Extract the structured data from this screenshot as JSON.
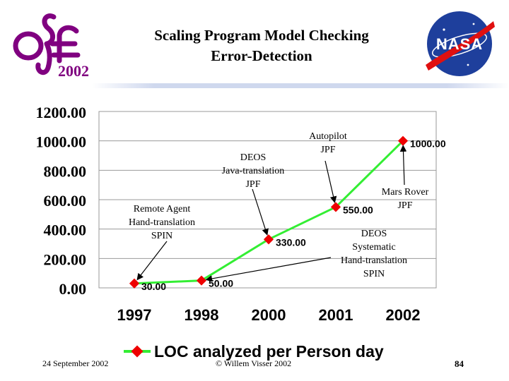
{
  "slide": {
    "title_line1": "Scaling Program Model Checking",
    "title_line2": "Error-Detection",
    "logo_year": "2002",
    "nasa_logo_text": "NASA",
    "footer_date": "24 September 2002",
    "footer_copyright": "© Willem Visser 2002",
    "footer_page": "84"
  },
  "colors": {
    "line": "#33ee33",
    "marker": "#ee0000",
    "grid": "#999999",
    "logo": "#800080",
    "nasa_blue": "#1e3f9c",
    "nasa_red": "#e01010"
  },
  "chart_data": {
    "type": "line",
    "categories": [
      "1997",
      "1998",
      "2000",
      "2001",
      "2002"
    ],
    "series": [
      {
        "name": "LOC analyzed per Person day",
        "values": [
          30.0,
          50.0,
          330.0,
          550.0,
          1000.0
        ]
      }
    ],
    "data_labels": [
      "30.00",
      "50.00",
      "330.00",
      "550.00",
      "1000.00"
    ],
    "y_ticks": [
      "0.00",
      "200.00",
      "400.00",
      "600.00",
      "800.00",
      "1000.00",
      "1200.00"
    ],
    "ylim": [
      0,
      1200
    ],
    "grid": "horizontal",
    "legend_position": "bottom",
    "annotations": [
      {
        "text_lines": [
          "Remote Agent",
          "Hand-translation",
          "SPIN"
        ],
        "points_to": "1997"
      },
      {
        "text_lines": [
          "DEOS",
          "Java-translation",
          "JPF"
        ],
        "points_to": "2000"
      },
      {
        "text_lines": [
          "Autopilot",
          "JPF"
        ],
        "points_to": "2001"
      },
      {
        "text_lines": [
          "Mars Rover",
          "JPF"
        ],
        "points_to": "2002"
      },
      {
        "text_lines": [
          "DEOS",
          "Systematic",
          "Hand-translation",
          "SPIN"
        ],
        "points_to": "1998"
      }
    ]
  }
}
